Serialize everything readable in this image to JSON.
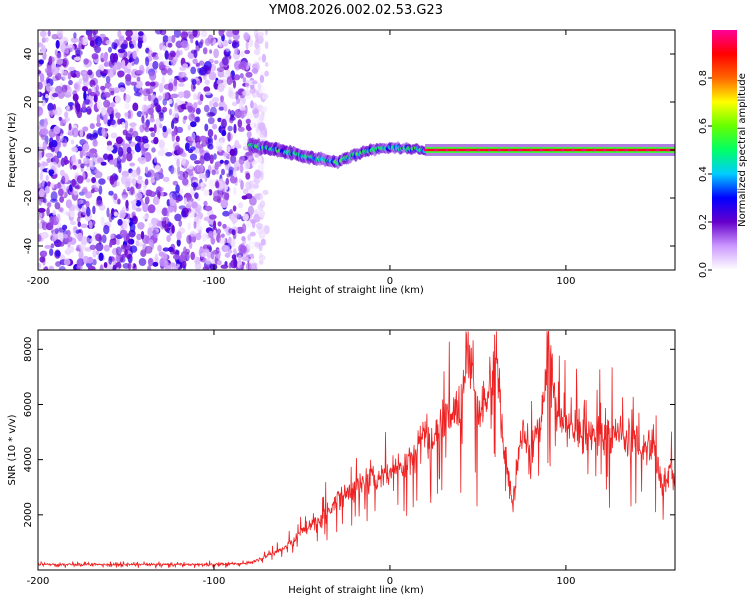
{
  "figure": {
    "title": "YM08.2026.002.02.53.G23"
  },
  "chart_data": [
    {
      "type": "heatmap",
      "name": "spectrogram",
      "xlabel": "Height of straight line (km)",
      "ylabel": "Frequency (Hz)",
      "xlim": [
        -200,
        162
      ],
      "ylim": [
        -50,
        50
      ],
      "xticks": [
        -200,
        -100,
        0,
        100
      ],
      "yticks": [
        -40,
        -20,
        0,
        20,
        40
      ],
      "colorbar": {
        "label": "Normalized spectral amplitude",
        "range": [
          0,
          1
        ],
        "ticks": [
          0.0,
          0.2,
          0.4,
          0.6,
          0.8
        ],
        "colors": [
          "#ffffff",
          "#cc99ff",
          "#6600cc",
          "#0000ff",
          "#00ccff",
          "#00ff66",
          "#66ff00",
          "#ffff00",
          "#ff6600",
          "#ff0000",
          "#ff0099"
        ]
      },
      "regions": [
        {
          "label": "noise",
          "x_range": [
            -200,
            -70
          ],
          "f_range": [
            -50,
            50
          ],
          "amplitude": "0.0-0.2"
        },
        {
          "label": "transition",
          "x_range": [
            -80,
            20
          ],
          "center_f": [
            2,
            0,
            -3,
            -5,
            0,
            1,
            0
          ],
          "amplitude": "0.2-0.6"
        },
        {
          "label": "carrier",
          "x_range": [
            20,
            162
          ],
          "center_f": 0,
          "amplitude": "0.9-1.0"
        }
      ]
    },
    {
      "type": "line",
      "name": "snr",
      "xlabel": "Height of straight line (km)",
      "ylabel": "SNR (10 * v/v)",
      "xlim": [
        -200,
        162
      ],
      "ylim": [
        0,
        8700
      ],
      "xticks": [
        -200,
        -100,
        0,
        100
      ],
      "yticks": [
        2000,
        4000,
        6000,
        8000
      ],
      "color": "#ee2222",
      "envelope": {
        "x": [
          -200,
          -100,
          -80,
          -70,
          -60,
          -50,
          -40,
          -30,
          -20,
          -10,
          0,
          10,
          20,
          25,
          30,
          40,
          45,
          50,
          55,
          60,
          65,
          70,
          75,
          80,
          85,
          90,
          95,
          100,
          110,
          120,
          130,
          140,
          150,
          155,
          160,
          162
        ],
        "y": [
          200,
          200,
          250,
          500,
          800,
          1400,
          1800,
          2600,
          3000,
          3300,
          3600,
          4000,
          5000,
          4600,
          5600,
          5800,
          8500,
          5500,
          6000,
          8500,
          4000,
          2500,
          5000,
          4500,
          5000,
          8200,
          5500,
          5200,
          4800,
          5000,
          4800,
          4500,
          4600,
          3000,
          3800,
          3000
        ]
      }
    }
  ]
}
